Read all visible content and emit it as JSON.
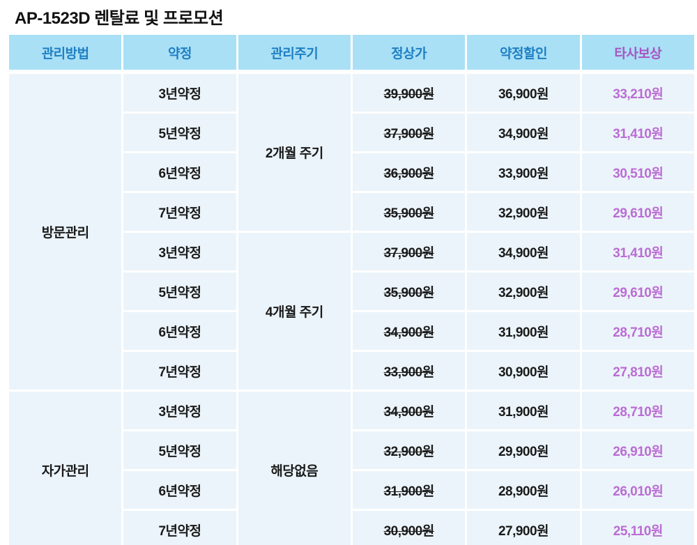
{
  "title": "AP-1523D 렌탈료 및 프로모션",
  "colors": {
    "header_bg": "#a9e0f6",
    "header_text_blue": "#1f7fc2",
    "header_text_purple": "#a855c3",
    "cell_bg": "#ebf4fa",
    "cell_text": "#1a1a1a",
    "price_purple": "#bb6cd4"
  },
  "table": {
    "columns": [
      "관리방법",
      "약정",
      "관리주기",
      "정상가",
      "약정할인",
      "타사보상"
    ],
    "groups": [
      {
        "method": "방문관리",
        "cycles": [
          {
            "cycle": "2개월 주기",
            "rows": [
              {
                "term": "3년약정",
                "regular": "39,900원",
                "discount": "36,900원",
                "compensation": "33,210원"
              },
              {
                "term": "5년약정",
                "regular": "37,900원",
                "discount": "34,900원",
                "compensation": "31,410원"
              },
              {
                "term": "6년약정",
                "regular": "36,900원",
                "discount": "33,900원",
                "compensation": "30,510원"
              },
              {
                "term": "7년약정",
                "regular": "35,900원",
                "discount": "32,900원",
                "compensation": "29,610원"
              }
            ]
          },
          {
            "cycle": "4개월 주기",
            "rows": [
              {
                "term": "3년약정",
                "regular": "37,900원",
                "discount": "34,900원",
                "compensation": "31,410원"
              },
              {
                "term": "5년약정",
                "regular": "35,900원",
                "discount": "32,900원",
                "compensation": "29,610원"
              },
              {
                "term": "6년약정",
                "regular": "34,900원",
                "discount": "31,900원",
                "compensation": "28,710원"
              },
              {
                "term": "7년약정",
                "regular": "33,900원",
                "discount": "30,900원",
                "compensation": "27,810원"
              }
            ]
          }
        ]
      },
      {
        "method": "자가관리",
        "cycles": [
          {
            "cycle": "해당없음",
            "rows": [
              {
                "term": "3년약정",
                "regular": "34,900원",
                "discount": "31,900원",
                "compensation": "28,710원"
              },
              {
                "term": "5년약정",
                "regular": "32,900원",
                "discount": "29,900원",
                "compensation": "26,910원"
              },
              {
                "term": "6년약정",
                "regular": "31,900원",
                "discount": "28,900원",
                "compensation": "26,010원"
              },
              {
                "term": "7년약정",
                "regular": "30,900원",
                "discount": "27,900원",
                "compensation": "25,110원"
              }
            ]
          }
        ]
      }
    ]
  }
}
